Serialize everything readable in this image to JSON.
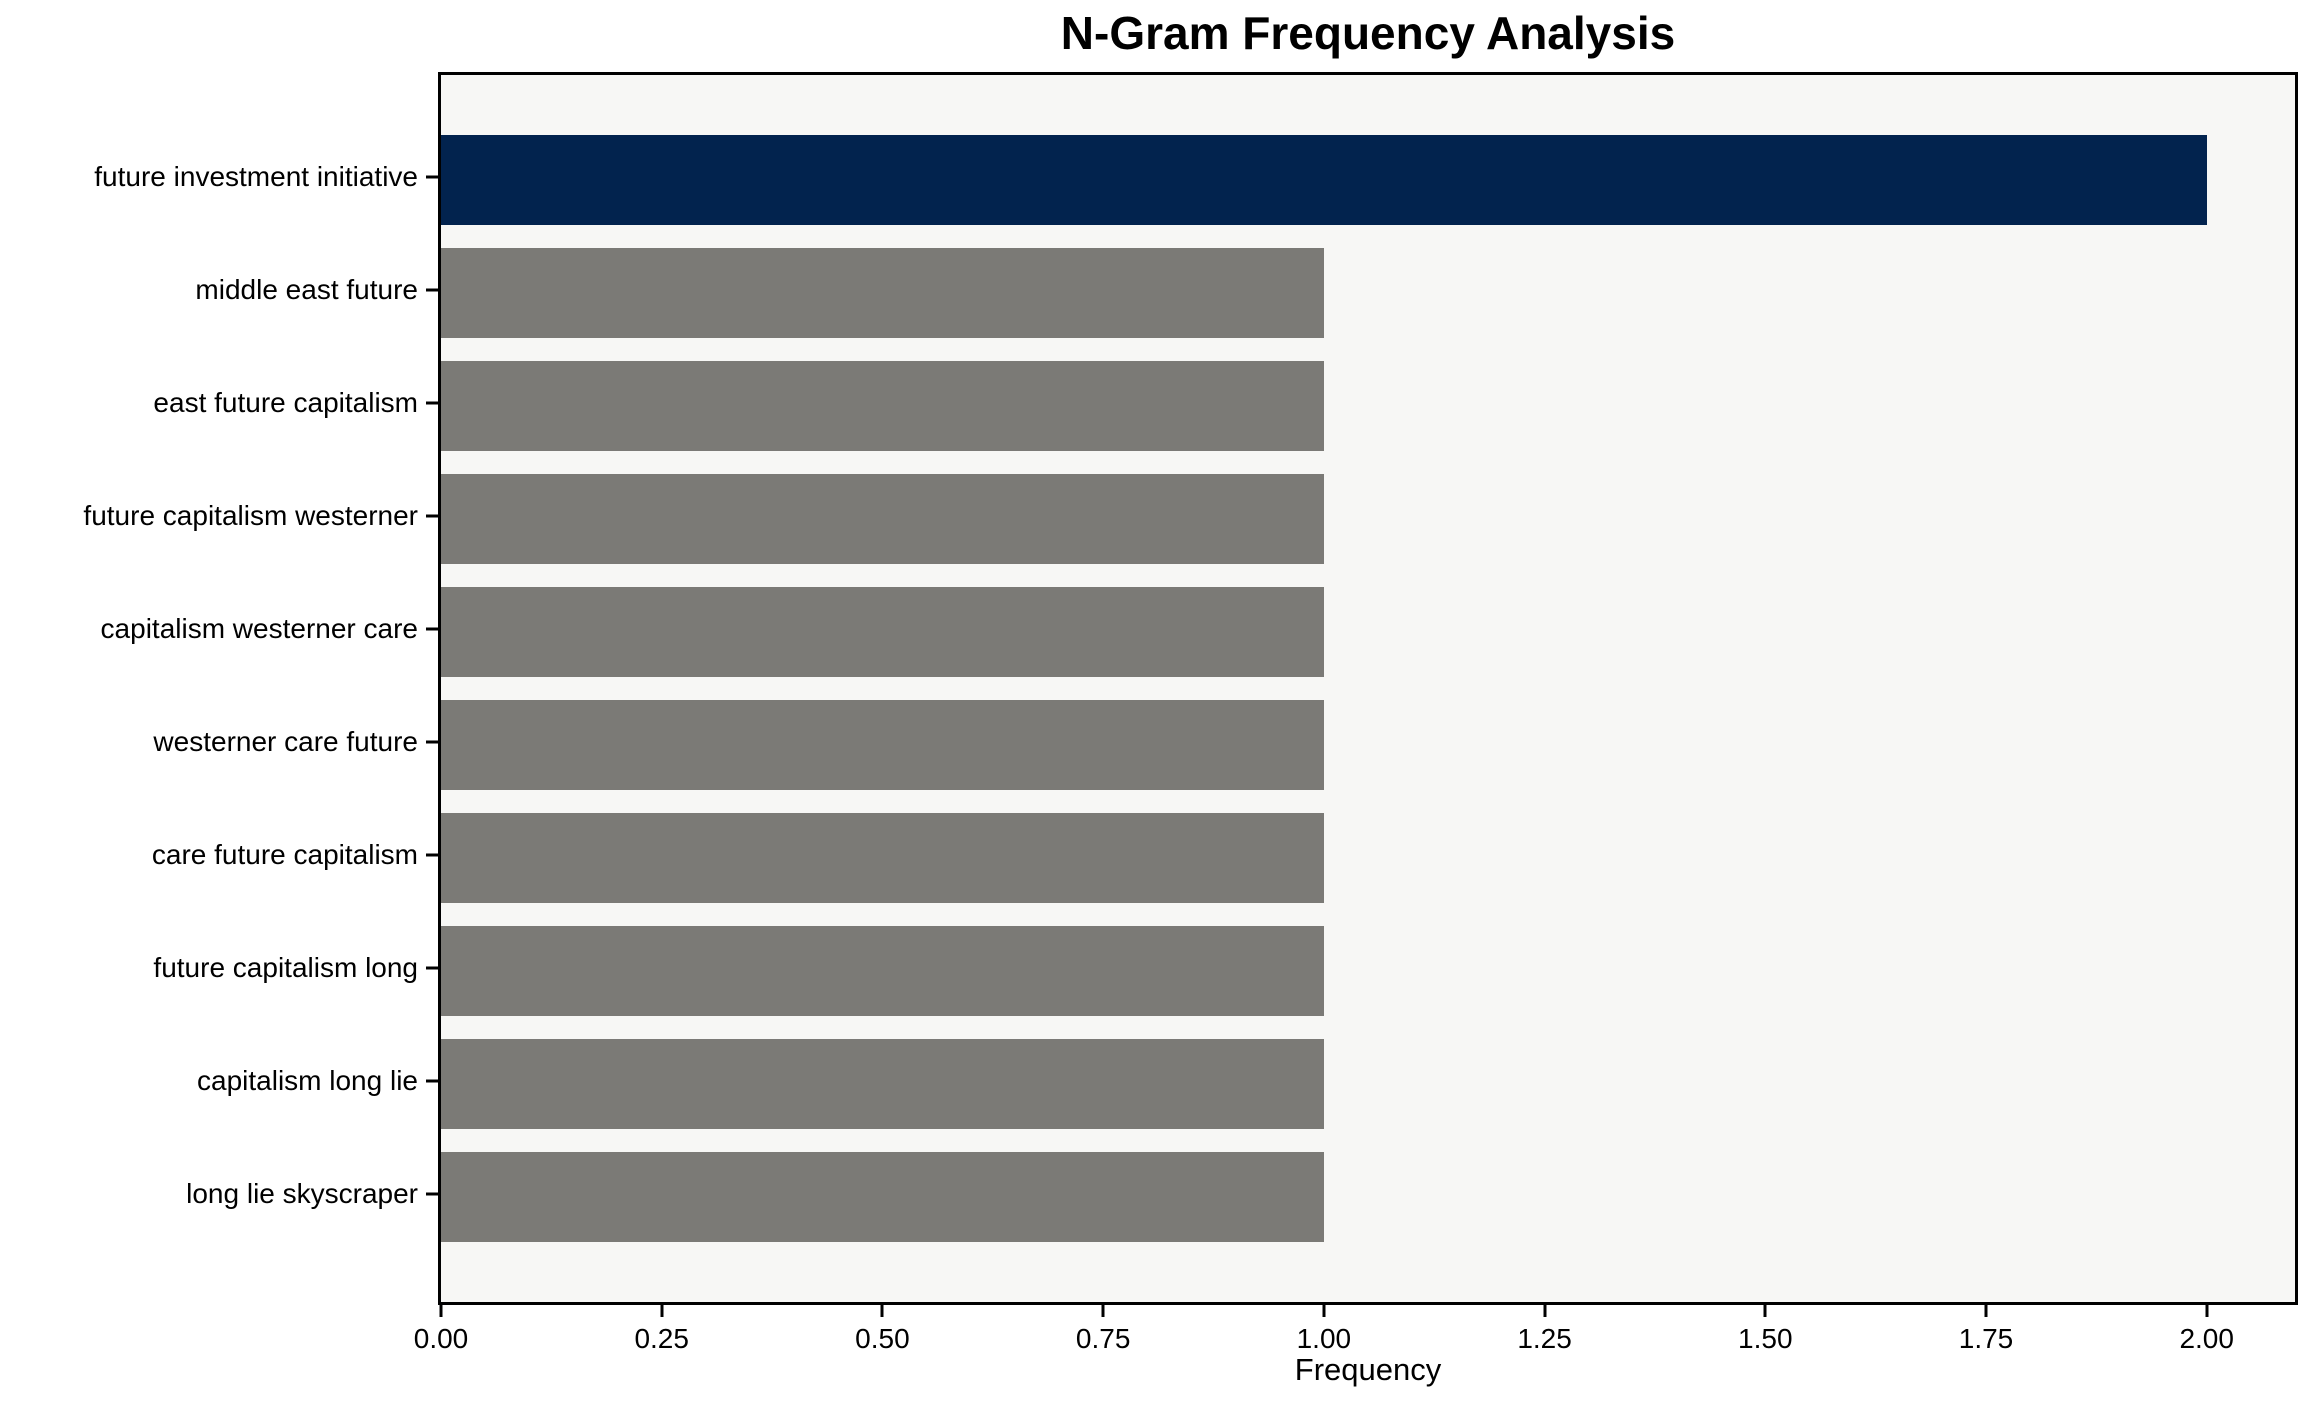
{
  "title": "N-Gram Frequency Analysis",
  "chart_data": {
    "type": "bar",
    "orientation": "horizontal",
    "title": "N-Gram Frequency Analysis",
    "xlabel": "Frequency",
    "ylabel": "",
    "categories": [
      "future investment initiative",
      "middle east future",
      "east future capitalism",
      "future capitalism westerner",
      "capitalism westerner care",
      "westerner care future",
      "care future capitalism",
      "future capitalism long",
      "capitalism long lie",
      "long lie skyscraper"
    ],
    "values": [
      2,
      1,
      1,
      1,
      1,
      1,
      1,
      1,
      1,
      1
    ],
    "bar_colors": [
      "#02234e",
      "#7b7a76",
      "#7b7a76",
      "#7b7a76",
      "#7b7a76",
      "#7b7a76",
      "#7b7a76",
      "#7b7a76",
      "#7b7a76",
      "#7b7a76"
    ],
    "highlight_color": "#02234e",
    "default_color": "#7b7a76",
    "xlim": [
      0,
      2.1
    ],
    "x_ticks": [
      "0.00",
      "0.25",
      "0.50",
      "0.75",
      "1.00",
      "1.25",
      "1.50",
      "1.75",
      "2.00"
    ],
    "grid": false,
    "legend": null,
    "plot_background": "#f7f7f5",
    "figure_background": "#ffffff",
    "text_color": "#000000"
  }
}
